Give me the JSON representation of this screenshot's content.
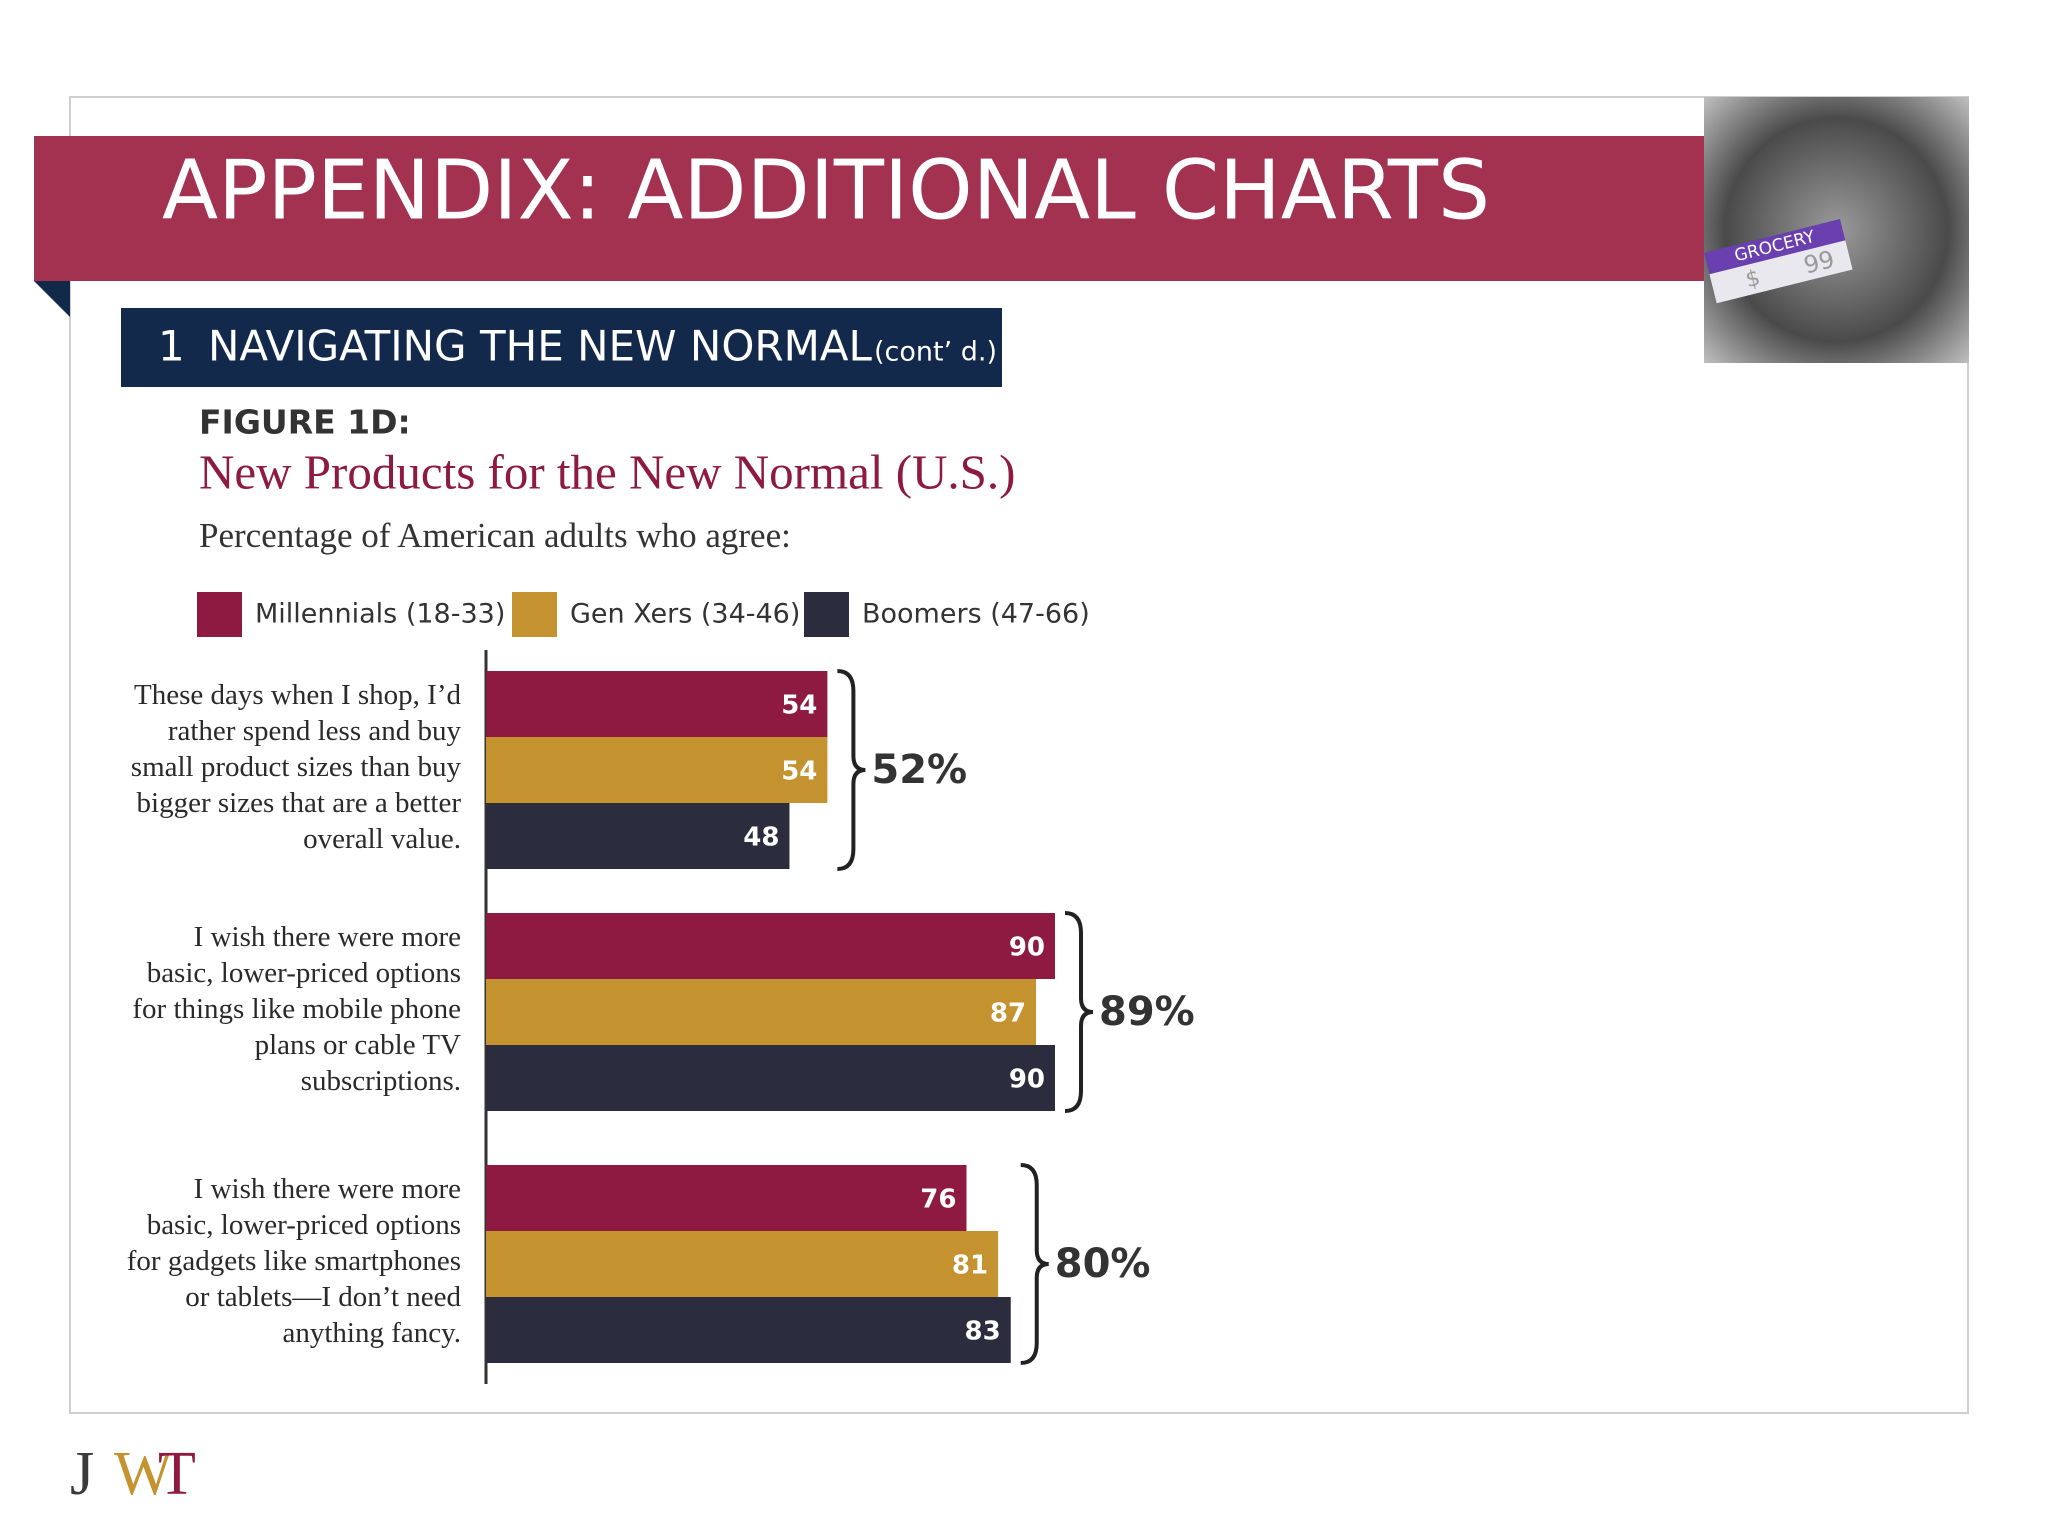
{
  "header": {
    "title": "APPENDIX: ADDITIONAL CHARTS",
    "section_number": "1",
    "section": "NAVIGATING THE NEW NORMAL",
    "section_note": "(cont’ d.)"
  },
  "photo": {
    "tag": "GROCERY",
    "price_symbol": "$",
    "price": "99"
  },
  "logo": {
    "letters": [
      "J",
      "W",
      "T"
    ],
    "colors": [
      "#3a3a3a",
      "#c4922f",
      "#8e1a41"
    ]
  },
  "chart_data": {
    "type": "bar",
    "orientation": "horizontal",
    "figure_label": "FIGURE 1D:",
    "title": "New Products for the New Normal (U.S.)",
    "subtitle": "Percentage of American adults who agree:",
    "categories": [
      "These days when I shop, I’d rather spend less and buy small product sizes than buy bigger sizes that are a better overall value.",
      "I wish there were more basic, lower-priced options for things like mobile phone plans or cable TV subscriptions.",
      "I wish there were more basic, lower-priced options for gadgets like smartphones or tablets—I don’t need anything fancy."
    ],
    "series": [
      {
        "name": "Millennials (18-33)",
        "color": "#8e1a41",
        "values": [
          54,
          90,
          76
        ]
      },
      {
        "name": "Gen Xers (34-46)",
        "color": "#c4922f",
        "values": [
          54,
          87,
          81
        ]
      },
      {
        "name": "Boomers (47-66)",
        "color": "#2b2d3e",
        "values": [
          48,
          90,
          83
        ]
      }
    ],
    "group_totals": [
      {
        "value": 52,
        "label": "52%"
      },
      {
        "value": 89,
        "label": "89%"
      },
      {
        "value": 80,
        "label": "80%"
      }
    ],
    "legend": "top"
  }
}
